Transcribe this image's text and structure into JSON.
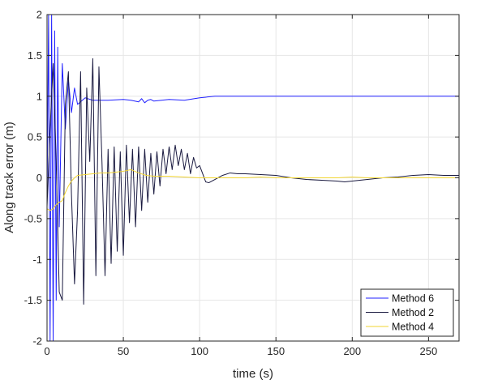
{
  "chart_data": {
    "type": "line",
    "title": "",
    "xlabel": "time (s)",
    "ylabel": "Along track error (m)",
    "xlim": [
      0,
      270
    ],
    "ylim": [
      -2,
      2
    ],
    "xticks": [
      0,
      50,
      100,
      150,
      200,
      250
    ],
    "yticks": [
      -2,
      -1.5,
      -1,
      -0.5,
      0,
      0.5,
      1,
      1.5,
      2
    ],
    "x_tick_labels": [
      "0",
      "50",
      "100",
      "150",
      "200",
      "250"
    ],
    "y_tick_labels": [
      "-2",
      "-1.5",
      "-1",
      "-0.5",
      "0",
      "0.5",
      "1",
      "1.5",
      "2"
    ],
    "grid": true,
    "legend_position": "bottom-right",
    "series": [
      {
        "name": "Method 6",
        "color": "#1f1fff",
        "x": [
          0,
          1,
          2,
          3,
          4,
          5,
          6,
          7,
          8,
          10,
          12,
          14,
          16,
          18,
          20,
          25,
          30,
          40,
          50,
          55,
          60,
          62,
          64,
          66,
          68,
          70,
          80,
          90,
          100,
          110,
          130,
          150,
          170,
          190,
          210,
          230,
          250,
          270
        ],
        "values": [
          -0.35,
          2.0,
          -2.0,
          2.0,
          -2.0,
          1.8,
          -1.5,
          1.6,
          -0.6,
          1.4,
          0.6,
          1.2,
          0.8,
          1.1,
          0.9,
          0.98,
          0.95,
          0.95,
          0.96,
          0.95,
          0.93,
          0.97,
          0.92,
          0.95,
          0.96,
          0.94,
          0.96,
          0.95,
          0.98,
          1.0,
          1.0,
          1.0,
          1.0,
          1.0,
          1.0,
          1.0,
          1.0,
          1.0
        ]
      },
      {
        "name": "Method 2",
        "color": "#1a1a40",
        "x": [
          0,
          2,
          4,
          6,
          8,
          10,
          12,
          14,
          16,
          18,
          20,
          22,
          24,
          26,
          28,
          30,
          32,
          34,
          36,
          38,
          40,
          42,
          44,
          46,
          48,
          50,
          52,
          54,
          56,
          58,
          60,
          62,
          64,
          66,
          68,
          70,
          72,
          74,
          76,
          78,
          80,
          82,
          84,
          86,
          88,
          90,
          92,
          94,
          96,
          98,
          100,
          102,
          104,
          106,
          110,
          115,
          120,
          125,
          130,
          140,
          150,
          160,
          170,
          180,
          190,
          195,
          200,
          210,
          220,
          230,
          240,
          250,
          260,
          270
        ],
        "values": [
          -0.35,
          0.6,
          1.4,
          0.2,
          -1.4,
          -1.5,
          0.9,
          1.3,
          -0.2,
          -1.3,
          -0.4,
          1.3,
          -1.55,
          1.1,
          0.2,
          1.46,
          -1.2,
          1.36,
          0.2,
          -1.2,
          0.35,
          -1.05,
          0.38,
          -0.9,
          0.32,
          -0.95,
          0.4,
          -0.55,
          0.35,
          -0.6,
          0.38,
          -0.4,
          0.35,
          -0.3,
          0.3,
          -0.2,
          0.32,
          -0.1,
          0.35,
          0.05,
          0.38,
          0.1,
          0.4,
          0.15,
          0.35,
          0.1,
          0.3,
          0.05,
          0.25,
          0.12,
          0.15,
          0.05,
          -0.05,
          -0.06,
          -0.02,
          0.03,
          0.06,
          0.05,
          0.05,
          0.04,
          0.03,
          0.0,
          -0.02,
          -0.03,
          -0.04,
          -0.05,
          -0.04,
          -0.02,
          0.0,
          0.01,
          0.03,
          0.04,
          0.03,
          0.03
        ]
      },
      {
        "name": "Method 4",
        "color": "#f2d531",
        "x": [
          0,
          2,
          4,
          6,
          8,
          10,
          12,
          14,
          16,
          18,
          20,
          25,
          30,
          35,
          40,
          45,
          50,
          55,
          60,
          65,
          70,
          80,
          90,
          100,
          110,
          120,
          130,
          140,
          150,
          160,
          170,
          180,
          190,
          200,
          210,
          220,
          230,
          240,
          250,
          260,
          270
        ],
        "values": [
          -0.38,
          -0.4,
          -0.38,
          -0.33,
          -0.3,
          -0.28,
          -0.18,
          -0.1,
          -0.04,
          0.0,
          0.03,
          0.04,
          0.05,
          0.06,
          0.06,
          0.07,
          0.08,
          0.1,
          0.06,
          0.03,
          0.02,
          0.02,
          0.01,
          0.0,
          0.0,
          0.0,
          0.0,
          0.01,
          0.0,
          0.0,
          0.0,
          0.0,
          0.0,
          0.01,
          0.0,
          0.0,
          0.0,
          0.0,
          0.0,
          0.0,
          0.0
        ]
      }
    ]
  }
}
